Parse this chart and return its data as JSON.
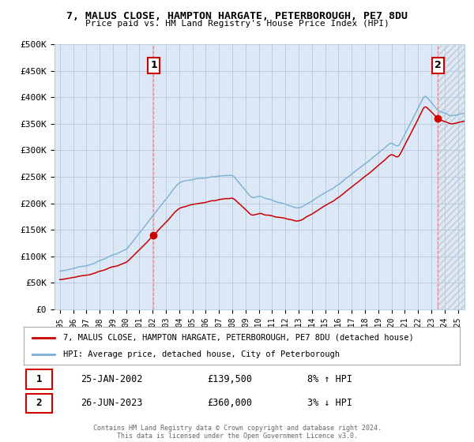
{
  "title": "7, MALUS CLOSE, HAMPTON HARGATE, PETERBOROUGH, PE7 8DU",
  "subtitle": "Price paid vs. HM Land Registry's House Price Index (HPI)",
  "ylim": [
    0,
    500000
  ],
  "yticks": [
    0,
    50000,
    100000,
    150000,
    200000,
    250000,
    300000,
    350000,
    400000,
    450000,
    500000
  ],
  "ytick_labels": [
    "£0",
    "£50K",
    "£100K",
    "£150K",
    "£200K",
    "£250K",
    "£300K",
    "£350K",
    "£400K",
    "£450K",
    "£500K"
  ],
  "sale1_date_num": 2002.07,
  "sale1_price": 139500,
  "sale1_label": "1",
  "sale1_date_str": "25-JAN-2002",
  "sale1_pct": "8% ↑ HPI",
  "sale2_date_num": 2023.48,
  "sale2_price": 360000,
  "sale2_label": "2",
  "sale2_date_str": "26-JUN-2023",
  "sale2_pct": "3% ↓ HPI",
  "house_color": "#cc0000",
  "hpi_color": "#7bafd4",
  "background_color": "#dce8f5",
  "grid_color": "#b8cfe0",
  "legend_house": "7, MALUS CLOSE, HAMPTON HARGATE, PETERBOROUGH, PE7 8DU (detached house)",
  "legend_hpi": "HPI: Average price, detached house, City of Peterborough",
  "footer": "Contains HM Land Registry data © Crown copyright and database right 2024.\nThis data is licensed under the Open Government Licence v3.0.",
  "xmin": 1994.6,
  "xmax": 2025.5
}
